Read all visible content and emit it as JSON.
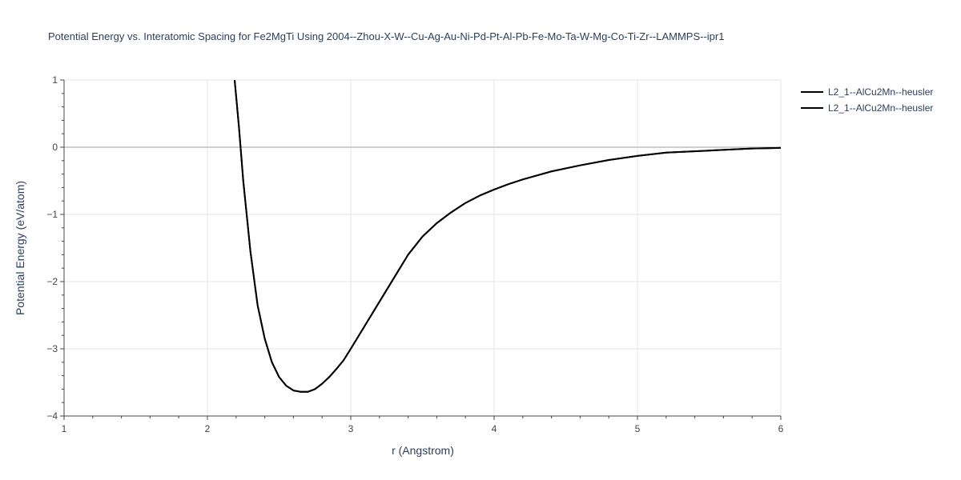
{
  "chart_data": {
    "type": "line",
    "title": "Potential Energy vs. Interatomic Spacing for Fe2MgTi Using 2004--Zhou-X-W--Cu-Ag-Au-Ni-Pd-Pt-Al-Pb-Fe-Mo-Ta-W-Mg-Co-Ti-Zr--LAMMPS--ipr1",
    "xlabel": "r (Angstrom)",
    "ylabel": "Potential Energy (eV/atom)",
    "xlim": [
      1,
      6
    ],
    "ylim": [
      -4,
      1
    ],
    "x_ticks": [
      1,
      2,
      3,
      4,
      5,
      6
    ],
    "y_ticks": [
      1,
      0,
      -1,
      -2,
      -3,
      -4
    ],
    "x_tick_labels": [
      "1",
      "2",
      "3",
      "4",
      "5",
      "6"
    ],
    "y_tick_labels": [
      "1",
      "0",
      "−1",
      "−2",
      "−3",
      "−4"
    ],
    "grid": true,
    "legend_position": "top-right",
    "series": [
      {
        "name": "L2_1--AlCu2Mn--heusler",
        "color": "#000000",
        "x": [
          2.19,
          2.22,
          2.25,
          2.3,
          2.35,
          2.4,
          2.45,
          2.5,
          2.55,
          2.6,
          2.65,
          2.7,
          2.75,
          2.8,
          2.85,
          2.9,
          2.95,
          3.0,
          3.1,
          3.2,
          3.3,
          3.4,
          3.5,
          3.6,
          3.7,
          3.8,
          3.9,
          4.0,
          4.1,
          4.2,
          4.4,
          4.6,
          4.8,
          5.0,
          5.2,
          5.5,
          5.8,
          6.0
        ],
        "y": [
          1.0,
          0.3,
          -0.5,
          -1.55,
          -2.35,
          -2.85,
          -3.2,
          -3.42,
          -3.55,
          -3.62,
          -3.64,
          -3.64,
          -3.6,
          -3.52,
          -3.42,
          -3.3,
          -3.17,
          -3.0,
          -2.65,
          -2.3,
          -1.95,
          -1.6,
          -1.33,
          -1.13,
          -0.97,
          -0.83,
          -0.72,
          -0.63,
          -0.55,
          -0.48,
          -0.36,
          -0.27,
          -0.19,
          -0.13,
          -0.08,
          -0.05,
          -0.02,
          -0.01
        ]
      },
      {
        "name": "L2_1--AlCu2Mn--heusler",
        "color": "#000000",
        "x": [
          2.19,
          2.22,
          2.25,
          2.3,
          2.35,
          2.4,
          2.45,
          2.5,
          2.55,
          2.6,
          2.65,
          2.7,
          2.75,
          2.8,
          2.85,
          2.9,
          2.95,
          3.0,
          3.1,
          3.2,
          3.3,
          3.4,
          3.5,
          3.6,
          3.7,
          3.8,
          3.9,
          4.0,
          4.1,
          4.2,
          4.4,
          4.6,
          4.8,
          5.0,
          5.2,
          5.5,
          5.8,
          6.0
        ],
        "y": [
          1.0,
          0.3,
          -0.5,
          -1.55,
          -2.35,
          -2.85,
          -3.2,
          -3.42,
          -3.55,
          -3.62,
          -3.64,
          -3.64,
          -3.6,
          -3.52,
          -3.42,
          -3.3,
          -3.17,
          -3.0,
          -2.65,
          -2.3,
          -1.95,
          -1.6,
          -1.33,
          -1.13,
          -0.97,
          -0.83,
          -0.72,
          -0.63,
          -0.55,
          -0.48,
          -0.36,
          -0.27,
          -0.19,
          -0.13,
          -0.08,
          -0.05,
          -0.02,
          -0.01
        ]
      }
    ]
  }
}
